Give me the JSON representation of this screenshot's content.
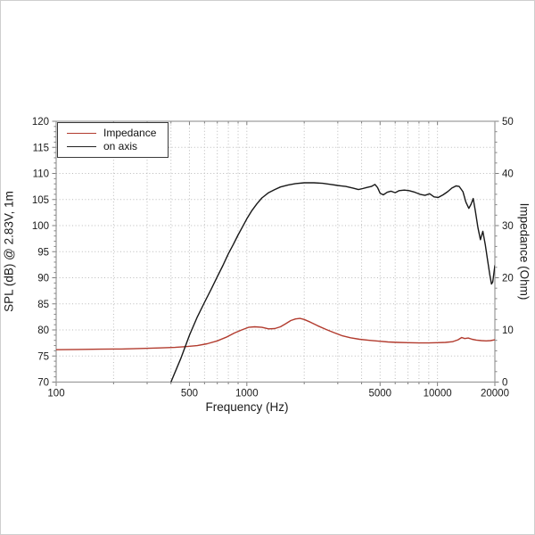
{
  "figure": {
    "background": "#ffffff",
    "frame_color": "#9a9a9a",
    "grid_color": "#b9b9b9",
    "text_color": "#1a1a1a"
  },
  "legend": {
    "entries": [
      {
        "label": "Impedance",
        "color": "#b23b2e"
      },
      {
        "label": "on axis",
        "color": "#222222"
      }
    ]
  },
  "chart_data": {
    "type": "line",
    "title": "",
    "xlabel": "Frequency (Hz)",
    "ylabel_left": "SPL (dB) @ 2.83V, 1m",
    "ylabel_right": "Impedance (Ohm)",
    "x_scale": "log",
    "x_range": [
      100,
      20000
    ],
    "x_ticks_labeled": [
      100,
      500,
      1000,
      5000,
      10000,
      20000
    ],
    "x_minor_gridlines": [
      200,
      300,
      400,
      500,
      600,
      700,
      800,
      900,
      1000,
      2000,
      3000,
      4000,
      5000,
      6000,
      7000,
      8000,
      9000,
      10000
    ],
    "y_left": {
      "label": "SPL (dB) @ 2.83V, 1m",
      "range": [
        70,
        120
      ],
      "major_tick_step": 5,
      "minor_tick_step": 1,
      "ticks": [
        70,
        75,
        80,
        85,
        90,
        95,
        100,
        105,
        110,
        115,
        120
      ]
    },
    "y_right": {
      "label": "Impedance (Ohm)",
      "range": [
        0,
        50
      ],
      "major_tick_step": 10,
      "minor_tick_step": 2,
      "ticks": [
        0,
        10,
        20,
        30,
        40,
        50
      ]
    },
    "grid": "dotted",
    "legend_position": "top-left",
    "series": [
      {
        "name": "Impedance",
        "axis": "right",
        "unit": "Ohm",
        "color": "#b23b2e",
        "points": [
          [
            100,
            6.2
          ],
          [
            130,
            6.25
          ],
          [
            170,
            6.3
          ],
          [
            220,
            6.35
          ],
          [
            280,
            6.45
          ],
          [
            350,
            6.55
          ],
          [
            420,
            6.65
          ],
          [
            480,
            6.8
          ],
          [
            550,
            7.0
          ],
          [
            620,
            7.35
          ],
          [
            700,
            7.9
          ],
          [
            780,
            8.6
          ],
          [
            860,
            9.4
          ],
          [
            940,
            10.0
          ],
          [
            1020,
            10.5
          ],
          [
            1100,
            10.6
          ],
          [
            1200,
            10.5
          ],
          [
            1300,
            10.2
          ],
          [
            1400,
            10.25
          ],
          [
            1500,
            10.6
          ],
          [
            1600,
            11.2
          ],
          [
            1700,
            11.8
          ],
          [
            1800,
            12.1
          ],
          [
            1900,
            12.2
          ],
          [
            2000,
            12.0
          ],
          [
            2150,
            11.5
          ],
          [
            2350,
            10.8
          ],
          [
            2600,
            10.1
          ],
          [
            2850,
            9.5
          ],
          [
            3150,
            8.9
          ],
          [
            3500,
            8.5
          ],
          [
            3900,
            8.2
          ],
          [
            4400,
            8.0
          ],
          [
            4900,
            7.85
          ],
          [
            5500,
            7.7
          ],
          [
            6200,
            7.6
          ],
          [
            7000,
            7.55
          ],
          [
            8000,
            7.5
          ],
          [
            9000,
            7.5
          ],
          [
            10000,
            7.55
          ],
          [
            11000,
            7.6
          ],
          [
            12000,
            7.75
          ],
          [
            12800,
            8.1
          ],
          [
            13400,
            8.55
          ],
          [
            13900,
            8.35
          ],
          [
            14500,
            8.45
          ],
          [
            15200,
            8.2
          ],
          [
            16000,
            8.05
          ],
          [
            17000,
            7.95
          ],
          [
            18000,
            7.9
          ],
          [
            19000,
            7.95
          ],
          [
            20000,
            8.1
          ]
        ]
      },
      {
        "name": "on axis",
        "axis": "left",
        "unit": "dB",
        "color": "#181818",
        "points": [
          [
            400,
            70.0
          ],
          [
            450,
            74.5
          ],
          [
            500,
            79.0
          ],
          [
            550,
            82.5
          ],
          [
            600,
            85.3
          ],
          [
            650,
            87.8
          ],
          [
            700,
            90.2
          ],
          [
            750,
            92.4
          ],
          [
            800,
            94.6
          ],
          [
            850,
            96.4
          ],
          [
            900,
            98.2
          ],
          [
            950,
            99.8
          ],
          [
            1000,
            101.3
          ],
          [
            1060,
            102.8
          ],
          [
            1130,
            104.2
          ],
          [
            1200,
            105.3
          ],
          [
            1300,
            106.3
          ],
          [
            1400,
            106.9
          ],
          [
            1500,
            107.4
          ],
          [
            1650,
            107.8
          ],
          [
            1800,
            108.05
          ],
          [
            2000,
            108.2
          ],
          [
            2250,
            108.2
          ],
          [
            2500,
            108.1
          ],
          [
            2750,
            107.9
          ],
          [
            3000,
            107.7
          ],
          [
            3300,
            107.5
          ],
          [
            3600,
            107.2
          ],
          [
            3850,
            106.9
          ],
          [
            4050,
            107.1
          ],
          [
            4250,
            107.3
          ],
          [
            4500,
            107.5
          ],
          [
            4700,
            107.9
          ],
          [
            4850,
            107.3
          ],
          [
            5000,
            106.2
          ],
          [
            5200,
            105.9
          ],
          [
            5450,
            106.4
          ],
          [
            5700,
            106.6
          ],
          [
            6000,
            106.3
          ],
          [
            6300,
            106.7
          ],
          [
            6700,
            106.8
          ],
          [
            7100,
            106.7
          ],
          [
            7600,
            106.4
          ],
          [
            8100,
            106.0
          ],
          [
            8600,
            105.8
          ],
          [
            9100,
            106.1
          ],
          [
            9600,
            105.5
          ],
          [
            10100,
            105.4
          ],
          [
            10700,
            105.9
          ],
          [
            11300,
            106.5
          ],
          [
            11900,
            107.2
          ],
          [
            12500,
            107.6
          ],
          [
            13000,
            107.5
          ],
          [
            13600,
            106.5
          ],
          [
            14100,
            104.5
          ],
          [
            14600,
            103.3
          ],
          [
            15000,
            104.1
          ],
          [
            15400,
            105.2
          ],
          [
            15800,
            102.8
          ],
          [
            16300,
            99.6
          ],
          [
            16800,
            97.3
          ],
          [
            17300,
            98.9
          ],
          [
            17800,
            96.4
          ],
          [
            18300,
            93.4
          ],
          [
            18800,
            90.6
          ],
          [
            19200,
            88.8
          ],
          [
            19500,
            89.2
          ],
          [
            20000,
            92.3
          ]
        ]
      }
    ]
  }
}
